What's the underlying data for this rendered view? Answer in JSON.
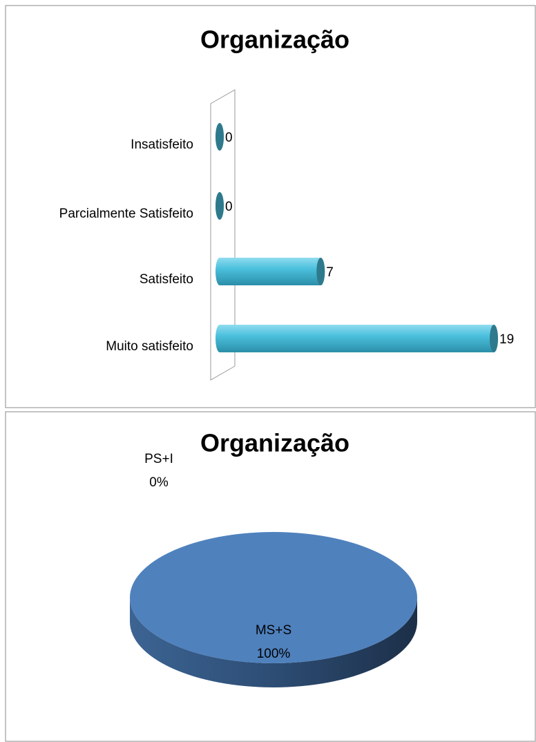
{
  "chart_data": [
    {
      "type": "bar",
      "orientation": "horizontal",
      "title": "Organização",
      "categories": [
        "Insatisfeito",
        "Parcialmente Satisfeito",
        "Satisfeito",
        "Muito satisfeito"
      ],
      "values": [
        0,
        0,
        7,
        19
      ],
      "color": "#4bc0dd"
    },
    {
      "type": "pie",
      "title": "Organização",
      "categories": [
        "MS+S",
        "PS+I"
      ],
      "values": [
        100,
        0
      ],
      "value_labels": [
        "100%",
        "0%"
      ],
      "colors": [
        "#4f81bd",
        "#c0504d"
      ]
    }
  ]
}
